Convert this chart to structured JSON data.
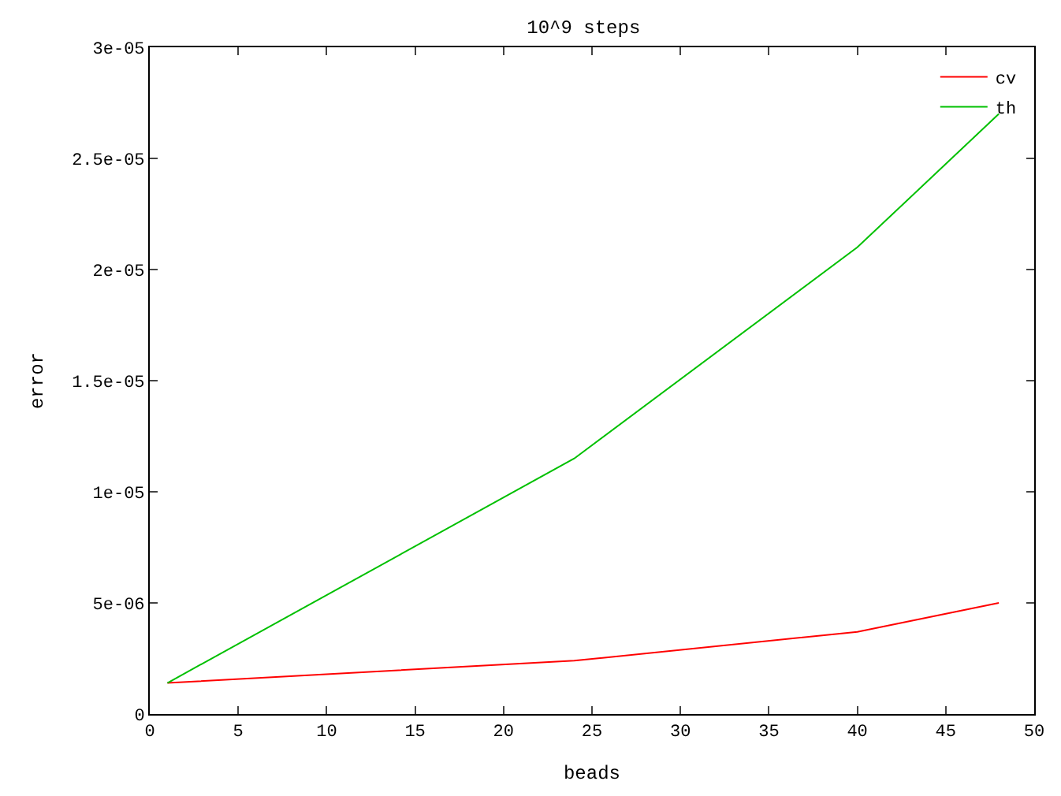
{
  "chart_data": {
    "type": "line",
    "title": "10^9 steps",
    "xlabel": "beads",
    "ylabel": "error",
    "x": [
      1,
      24,
      40,
      48
    ],
    "series": [
      {
        "name": "cv",
        "color": "#ff0000",
        "values": [
          1.4e-06,
          2.4e-06,
          3.7e-06,
          5e-06
        ]
      },
      {
        "name": "th",
        "color": "#00c000",
        "values": [
          1.4e-06,
          1.15e-05,
          2.1e-05,
          2.7e-05
        ]
      }
    ],
    "xlim": [
      0,
      50
    ],
    "xticks": [
      0,
      5,
      10,
      15,
      20,
      25,
      30,
      35,
      40,
      45,
      50
    ],
    "ylim": [
      0,
      3e-05
    ],
    "yticks": [
      {
        "value": 0,
        "label": "0"
      },
      {
        "value": 5e-06,
        "label": "5e-06"
      },
      {
        "value": 1e-05,
        "label": "1e-05"
      },
      {
        "value": 1.5e-05,
        "label": "1.5e-05"
      },
      {
        "value": 2e-05,
        "label": "2e-05"
      },
      {
        "value": 2.5e-05,
        "label": "2.5e-05"
      },
      {
        "value": 3e-05,
        "label": "3e-05"
      }
    ],
    "legend": "top right",
    "marker": "none",
    "line_style": "solid"
  }
}
